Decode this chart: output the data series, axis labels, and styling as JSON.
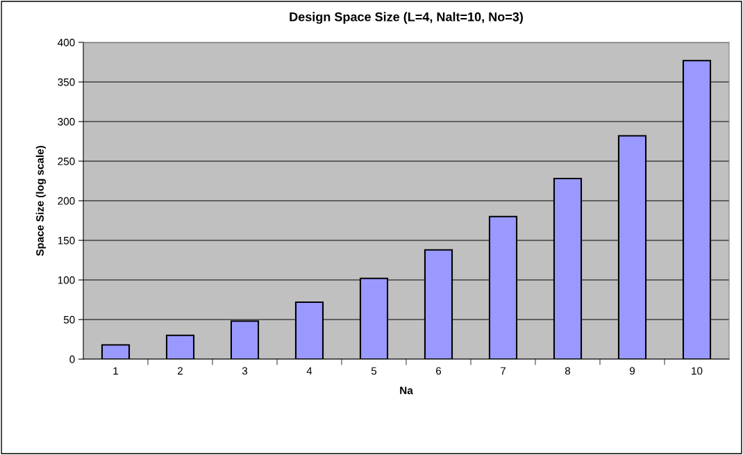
{
  "chart_data": {
    "type": "bar",
    "title": "Design Space Size (L=4, Nalt=10, No=3)",
    "xlabel": "Na",
    "ylabel": "Space Size (log scale)",
    "categories": [
      "1",
      "2",
      "3",
      "4",
      "5",
      "6",
      "7",
      "8",
      "9",
      "10"
    ],
    "values": [
      18,
      30,
      48,
      72,
      102,
      138,
      180,
      228,
      282,
      377
    ],
    "color": "#9999ff",
    "ylim": [
      0,
      400
    ],
    "yticks": [
      0,
      50,
      100,
      150,
      200,
      250,
      300,
      350,
      400
    ],
    "grid": "y"
  }
}
